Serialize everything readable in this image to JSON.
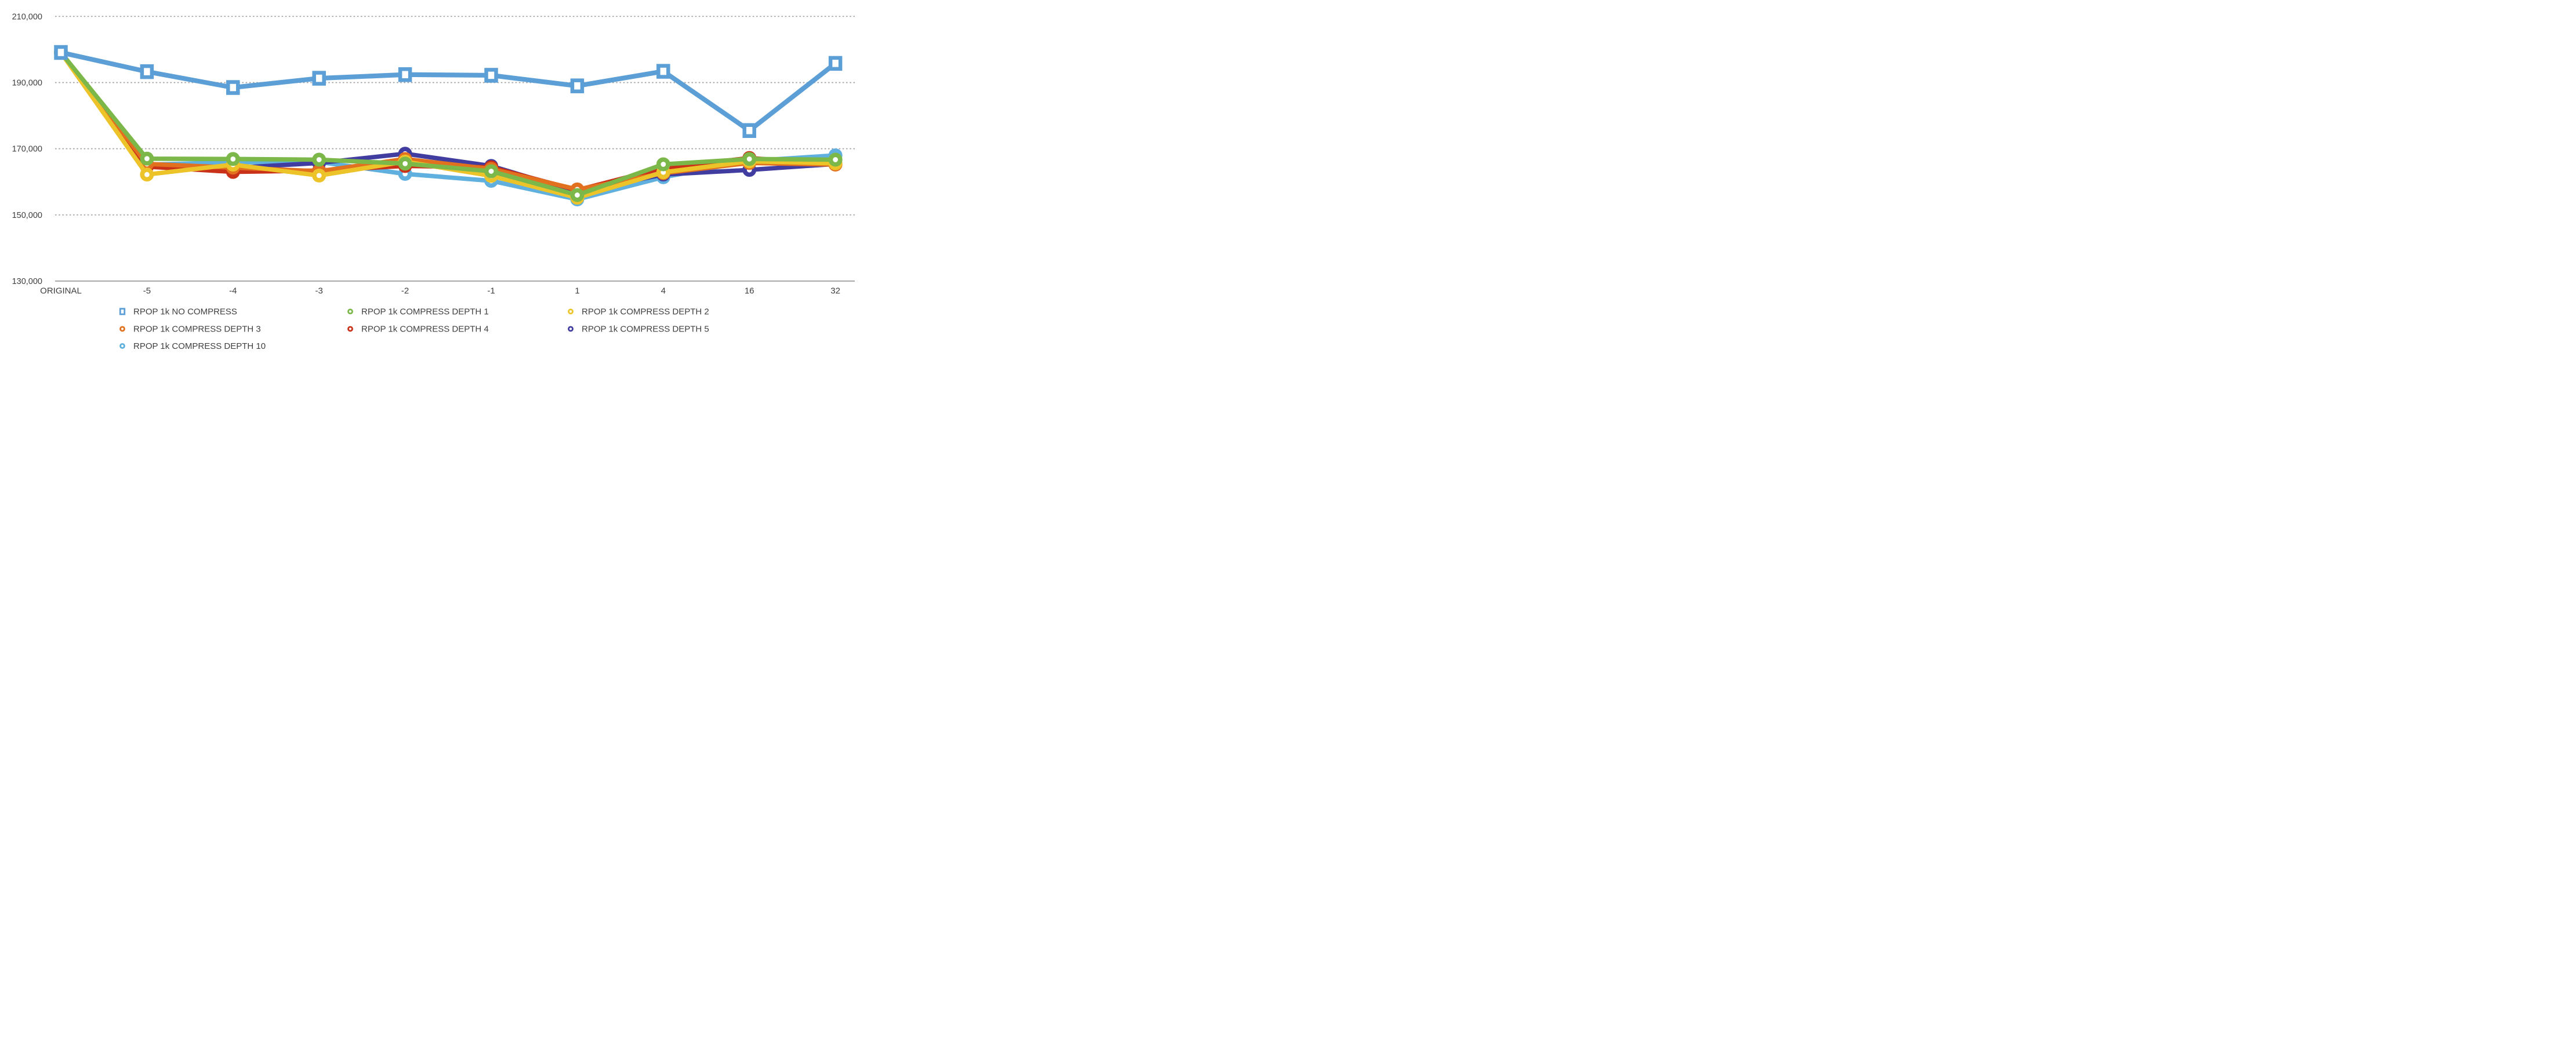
{
  "page": {
    "background": "#ffffff"
  },
  "chart_data": {
    "type": "line",
    "title": "",
    "xlabel": "",
    "ylabel": "",
    "categories": [
      "ORIGINAL",
      "-5",
      "-4",
      "-3",
      "-2",
      "-1",
      "1",
      "4",
      "16",
      "32"
    ],
    "y_tick_labels": [
      "210,000",
      "190,000",
      "170,000",
      "150,000",
      "130,000"
    ],
    "y_tick_values": [
      210000,
      190000,
      170000,
      150000,
      130000
    ],
    "ylim": [
      130000,
      210000
    ],
    "grid": "horizontal-dotted",
    "legend_position": "bottom",
    "axis_text_color": "#3e3e3e",
    "legend_text_color": "#404040",
    "grid_color": "#a0a0a0",
    "axis_line_color": "#9b9b9b",
    "series": [
      {
        "name": "RPOP 1k NO COMPRESS",
        "color": "#5B9FD6",
        "marker": "square",
        "values": [
          199100,
          193300,
          188500,
          191300,
          192400,
          192200,
          189000,
          193400,
          175500,
          195800
        ]
      },
      {
        "name": "RPOP 1k COMPRESS DEPTH 1",
        "color": "#7BB849",
        "marker": "circle",
        "values": [
          199100,
          167000,
          166900,
          166700,
          165500,
          163200,
          156000,
          165300,
          166900,
          166700
        ]
      },
      {
        "name": "RPOP 1k COMPRESS DEPTH 2",
        "color": "#EDC32A",
        "marker": "circle",
        "values": [
          199100,
          162200,
          165200,
          161900,
          166100,
          161800,
          155200,
          162900,
          166200,
          165600
        ]
      },
      {
        "name": "RPOP 1k COMPRESS DEPTH 3",
        "color": "#E2711F",
        "marker": "circle",
        "values": [
          199100,
          165400,
          164300,
          163200,
          166900,
          163900,
          157700,
          162600,
          165700,
          165200
        ]
      },
      {
        "name": "RPOP 1k COMPRESS DEPTH 4",
        "color": "#C93118",
        "marker": "circle",
        "values": [
          199100,
          164600,
          163000,
          163400,
          164800,
          164400,
          157500,
          164200,
          167200,
          165300
        ]
      },
      {
        "name": "RPOP 1k COMPRESS DEPTH 5",
        "color": "#413DA0",
        "marker": "circle",
        "values": [
          199100,
          165100,
          164200,
          165700,
          168500,
          164800,
          157000,
          162200,
          163600,
          165400
        ]
      },
      {
        "name": "RPOP 1k COMPRESS DEPTH 10",
        "color": "#5FB0DE",
        "marker": "circle",
        "values": [
          199100,
          165200,
          165900,
          166000,
          162400,
          160300,
          154700,
          161400,
          166300,
          168000
        ]
      }
    ],
    "draw_order": [
      6,
      5,
      4,
      3,
      2,
      1,
      0
    ],
    "legend_rows": [
      [
        0,
        1,
        2
      ],
      [
        3,
        4,
        5
      ],
      [
        6
      ]
    ]
  }
}
